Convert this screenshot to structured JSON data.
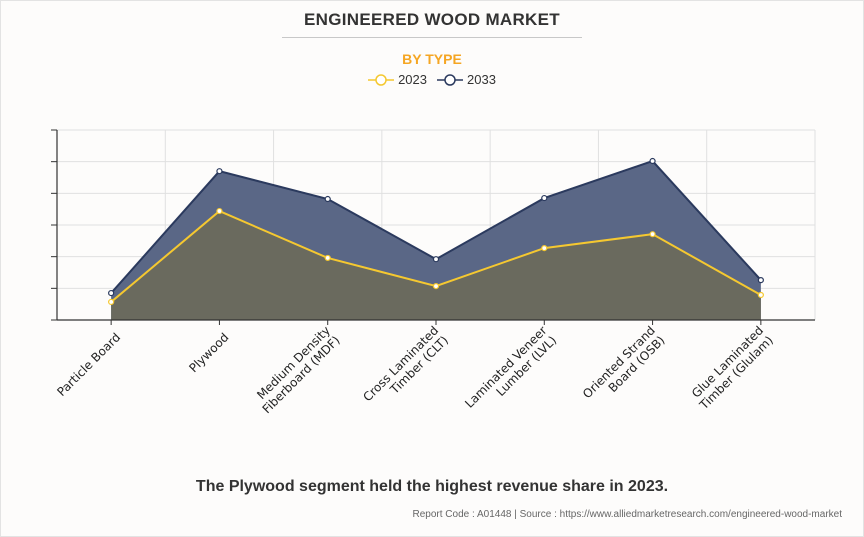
{
  "chart_data": {
    "type": "area",
    "title": "ENGINEERED WOOD MARKET",
    "subtitle": "BY TYPE",
    "xlabel": "",
    "ylabel": "",
    "ylim": [
      0,
      6
    ],
    "y_tick_labels_visible": false,
    "grid": true,
    "legend_position": "top-center",
    "categories": [
      [
        "Particle Board"
      ],
      [
        "Plywood"
      ],
      [
        "Medium Density",
        "Fiberboard (MDF)"
      ],
      [
        "Cross Laminated",
        "Timber (CLT)"
      ],
      [
        "Laminated Veneer",
        "Lumber (LVL)"
      ],
      [
        "Oriented Strand",
        "Board (OSB)"
      ],
      [
        "Glue Laminated",
        "Timber (Glulam)"
      ]
    ],
    "series": [
      {
        "name": "2033",
        "color": "#2b3a5e",
        "fill": "#5a6786",
        "values": [
          0.85,
          4.7,
          3.82,
          1.92,
          3.85,
          5.02,
          1.26
        ]
      },
      {
        "name": "2023",
        "color": "#f5c830",
        "fill": "#6a6a5e",
        "values": [
          0.57,
          3.44,
          1.96,
          1.07,
          2.27,
          2.71,
          0.79
        ]
      }
    ]
  },
  "header": {
    "title": "ENGINEERED WOOD MARKET",
    "subtitle": "BY TYPE"
  },
  "legend": [
    {
      "label": "2023",
      "color": "#f5c830"
    },
    {
      "label": "2033",
      "color": "#2b3a5e"
    }
  ],
  "caption": "The Plywood segment held the highest revenue share in 2023.",
  "source": "Report Code : A01448  |  Source : https://www.alliedmarketresearch.com/engineered-wood-market"
}
